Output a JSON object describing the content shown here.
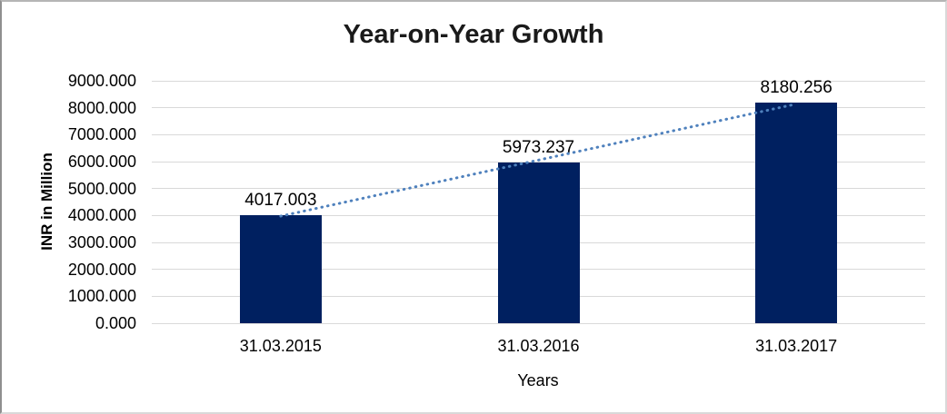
{
  "chart_data": {
    "type": "bar",
    "title": "Year-on-Year Growth",
    "xlabel": "Years",
    "ylabel": "INR in Million",
    "categories": [
      "31.03.2015",
      "31.03.2016",
      "31.03.2017"
    ],
    "values": [
      4017.003,
      5973.237,
      8180.256
    ],
    "value_labels": [
      "4017.003",
      "5973.237",
      "8180.256"
    ],
    "y_ticks": [
      "0.000",
      "1000.000",
      "2000.000",
      "3000.000",
      "4000.000",
      "5000.000",
      "6000.000",
      "7000.000",
      "8000.000",
      "9000.000"
    ],
    "ylim": [
      0,
      9000
    ],
    "grid": true,
    "legend": "none",
    "trendline": {
      "type": "linear",
      "style": "round-dot"
    },
    "colors": {
      "bar": "#002060",
      "trendline": "#4F81BD",
      "gridline": "#D9D9D9",
      "text": "#000000",
      "title": "#1A1A1A",
      "background": "#FFFFFF"
    }
  }
}
